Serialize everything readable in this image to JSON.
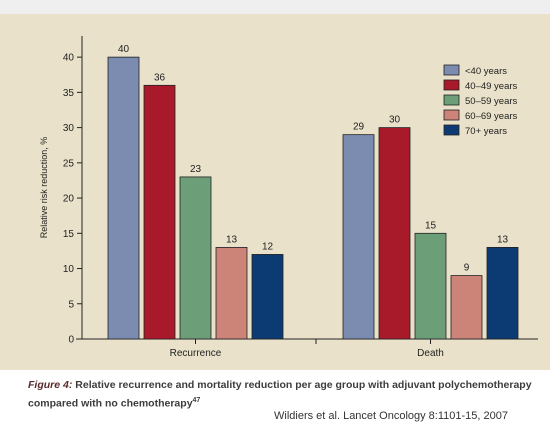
{
  "chart_data": {
    "type": "bar",
    "title": "",
    "xlabel": "",
    "ylabel": "Relative risk reduction, %",
    "ylim": [
      0,
      43
    ],
    "yticks": [
      0,
      5,
      10,
      15,
      20,
      25,
      30,
      35,
      40
    ],
    "categories": [
      "Recurrence",
      "Death"
    ],
    "series": [
      {
        "name": "<40 years",
        "color": "#7b8cb0",
        "values": [
          40,
          29
        ]
      },
      {
        "name": "40–49 years",
        "color": "#a8192a",
        "values": [
          36,
          30
        ]
      },
      {
        "name": "50–59 years",
        "color": "#6c9e78",
        "values": [
          23,
          15
        ]
      },
      {
        "name": "60–69 years",
        "color": "#cc8478",
        "values": [
          13,
          9
        ]
      },
      {
        "name": "70+ years",
        "color": "#0c3a73",
        "values": [
          12,
          13
        ]
      }
    ],
    "legend": "top-right",
    "grid": false
  },
  "caption": {
    "figure_label": "Figure 4:",
    "text": "Relative recurrence and mortality reduction per age group with adjuvant polychemotherapy compared with no chemotherapy",
    "superscript": "47"
  },
  "source": "Wildiers et al. Lancet Oncology 8:1101-15, 2007"
}
